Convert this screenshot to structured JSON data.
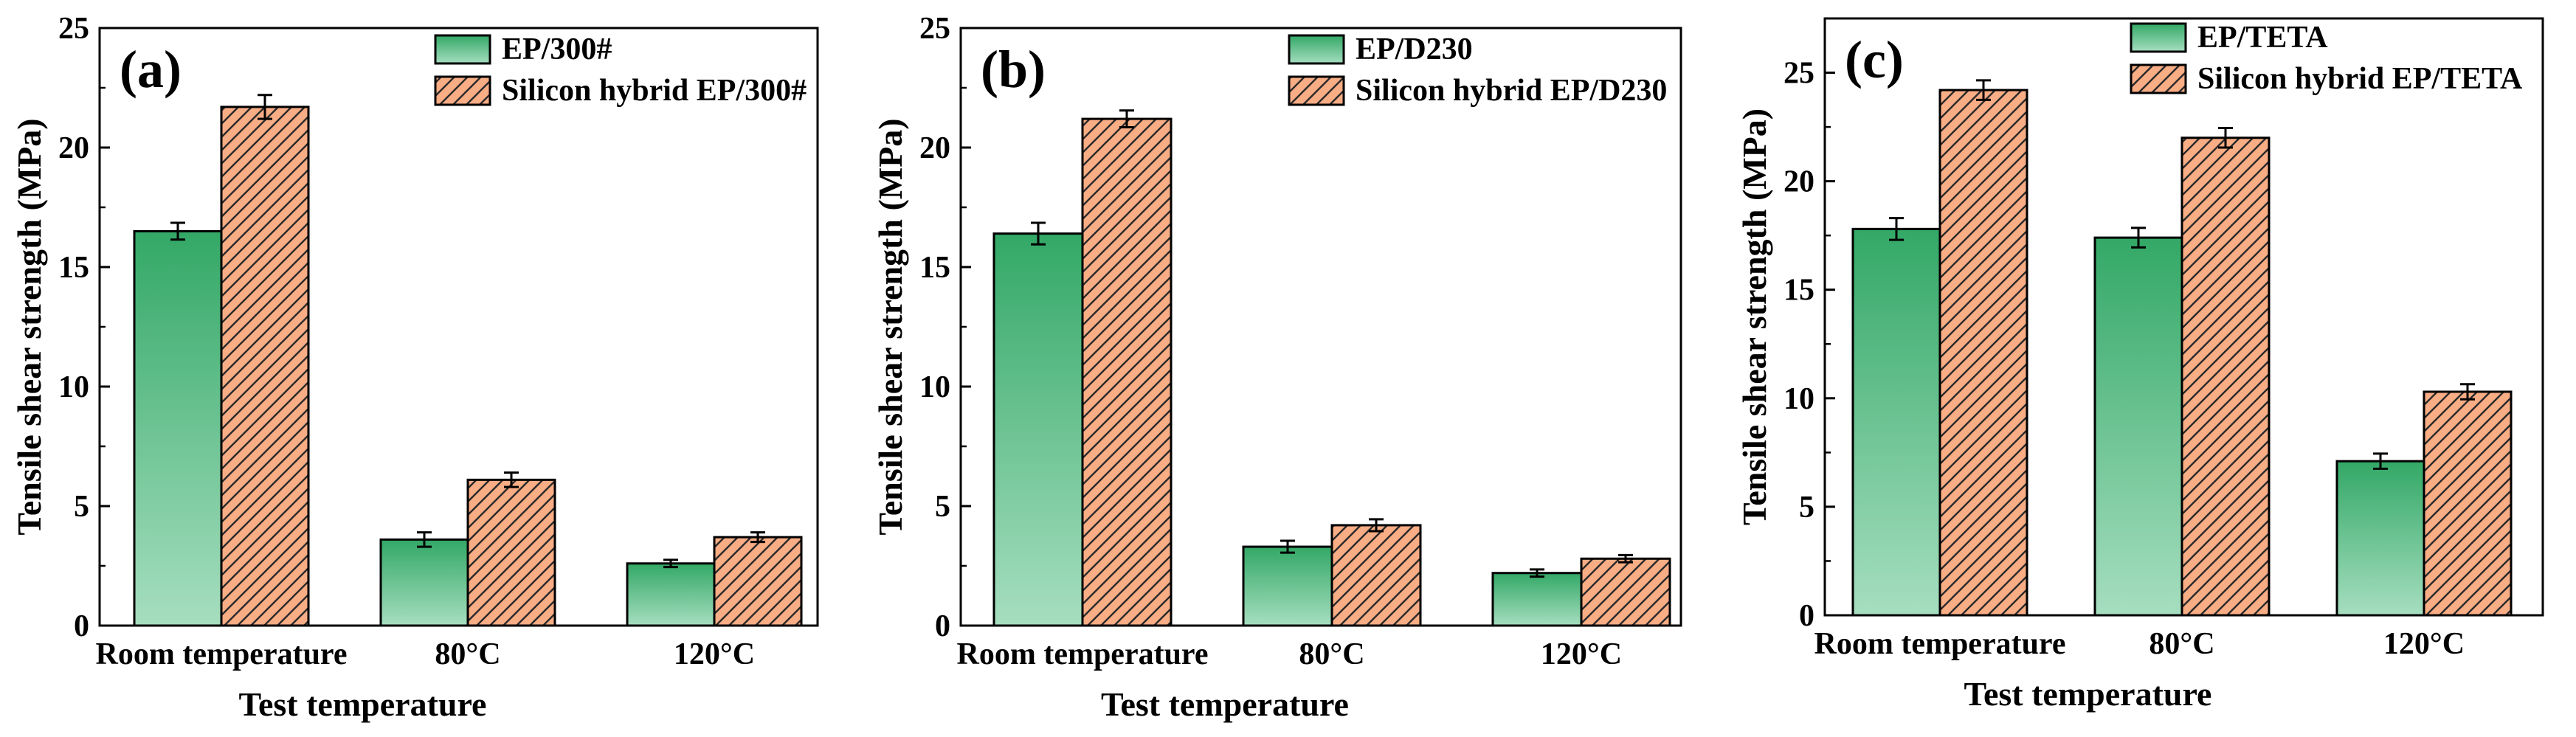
{
  "colors": {
    "series1_top": "#33a866",
    "series1_bottom": "#a6dec0",
    "series2_fill": "#f8ad85",
    "series2_hatch": "#2a2a2a",
    "axis": "#000000"
  },
  "chart_data": [
    {
      "type": "bar",
      "panel_label": "(a)",
      "xlabel": "Test temperature",
      "ylabel": "Tensile shear strength (MPa)",
      "ylim": [
        0,
        25
      ],
      "yticks": [
        0,
        5,
        10,
        15,
        20,
        25
      ],
      "categories": [
        "Room temperature",
        "80°C",
        "120°C"
      ],
      "legend_position": "top-right",
      "series": [
        {
          "name": "EP/300#",
          "values": [
            16.5,
            3.6,
            2.6
          ],
          "errors": [
            0.35,
            0.3,
            0.15
          ]
        },
        {
          "name": "Silicon hybrid EP/300#",
          "values": [
            21.7,
            6.1,
            3.7
          ],
          "errors": [
            0.5,
            0.3,
            0.2
          ]
        }
      ]
    },
    {
      "type": "bar",
      "panel_label": "(b)",
      "xlabel": "Test temperature",
      "ylabel": "Tensile shear strength (MPa)",
      "ylim": [
        0,
        25
      ],
      "yticks": [
        0,
        5,
        10,
        15,
        20,
        25
      ],
      "categories": [
        "Room temperature",
        "80°C",
        "120°C"
      ],
      "legend_position": "top-right",
      "series": [
        {
          "name": "EP/D230",
          "values": [
            16.4,
            3.3,
            2.2
          ],
          "errors": [
            0.45,
            0.25,
            0.15
          ]
        },
        {
          "name": "Silicon hybrid EP/D230",
          "values": [
            21.2,
            4.2,
            2.8
          ],
          "errors": [
            0.35,
            0.25,
            0.15
          ]
        }
      ]
    },
    {
      "type": "bar",
      "panel_label": "(c)",
      "xlabel": "Test temperature",
      "ylabel": "Tensile shear strength (MPa)",
      "ylim": [
        0,
        27.5
      ],
      "yticks": [
        0,
        5,
        10,
        15,
        20,
        25
      ],
      "categories": [
        "Room temperature",
        "80°C",
        "120°C"
      ],
      "legend_position": "top-right",
      "series": [
        {
          "name": "EP/TETA",
          "values": [
            17.8,
            17.4,
            7.1
          ],
          "errors": [
            0.5,
            0.45,
            0.35
          ]
        },
        {
          "name": "Silicon hybrid EP/TETA",
          "values": [
            24.2,
            22.0,
            10.3
          ],
          "errors": [
            0.45,
            0.45,
            0.35
          ]
        }
      ]
    }
  ]
}
